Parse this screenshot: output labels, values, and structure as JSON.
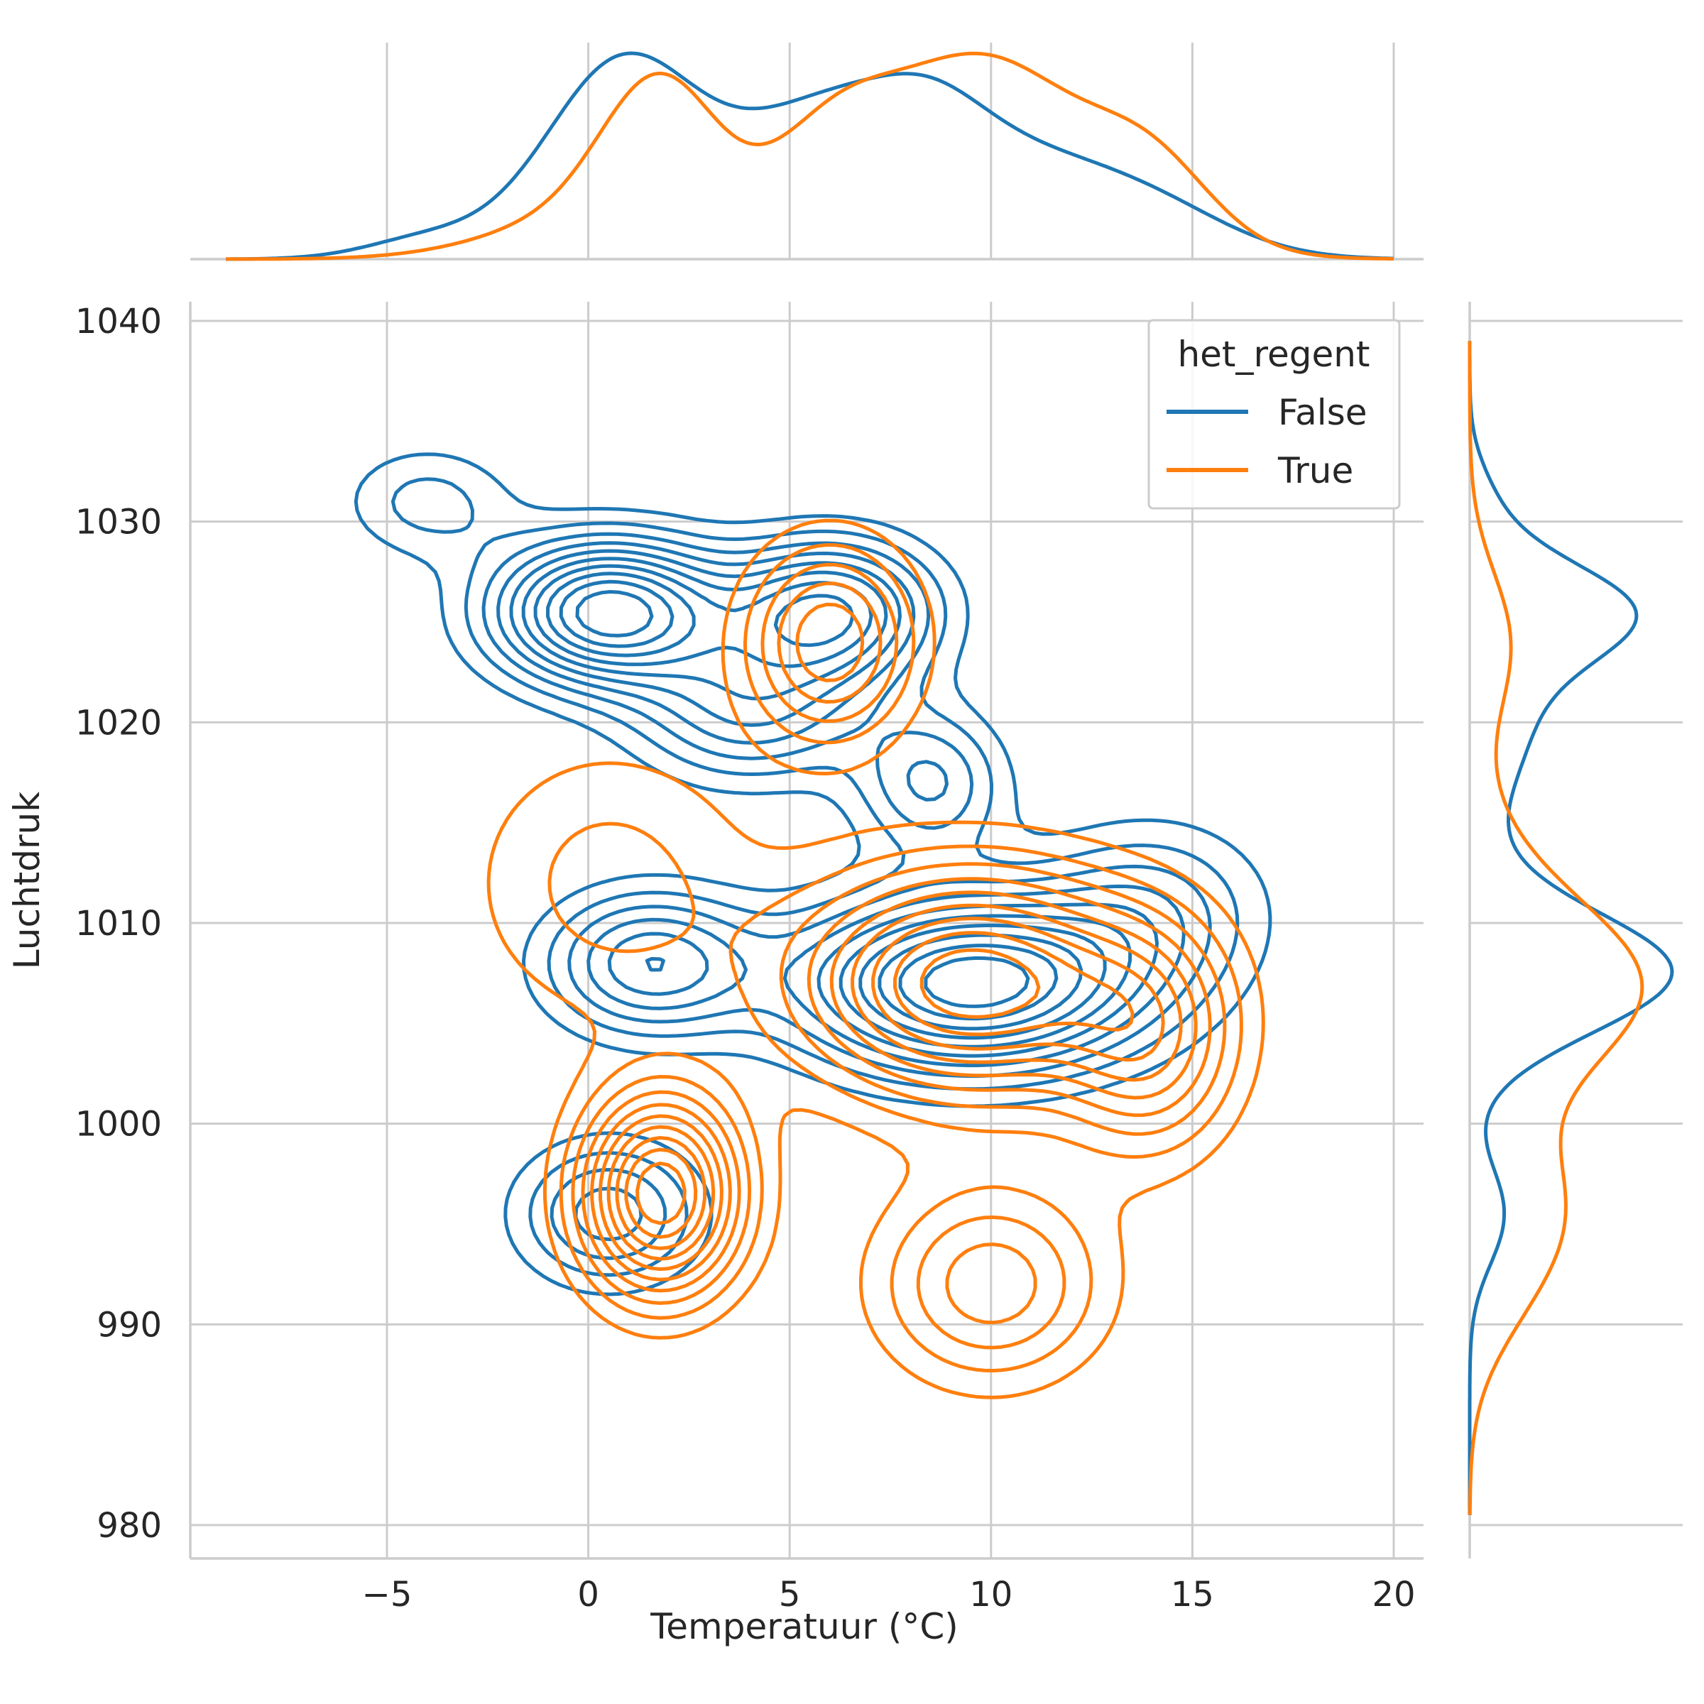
{
  "chart_data": {
    "type": "contour",
    "kind": "bivariate kde jointplot with marginal kde curves",
    "xlabel": "Temperatuur (°C)",
    "ylabel": "Luchtdruk",
    "xlim": [
      -10,
      21
    ],
    "ylim": [
      978.5,
      1041
    ],
    "xticks": [
      -5,
      0,
      5,
      10,
      15,
      20
    ],
    "xtick_labels": [
      "−5",
      "0",
      "5",
      "10",
      "15",
      "20"
    ],
    "yticks": [
      980,
      990,
      1000,
      1010,
      1020,
      1030,
      1040
    ],
    "ytick_labels": [
      "980",
      "990",
      "1000",
      "1010",
      "1020",
      "1030",
      "1040"
    ],
    "grid": true,
    "legend": {
      "title": "het_regent",
      "placement": "upper right",
      "entries": [
        "False",
        "True"
      ]
    },
    "series": [
      {
        "name": "False",
        "color": "#1f77b4",
        "modes": [
          {
            "x": 0.5,
            "y": 1025.5,
            "weight": 1.0,
            "sx": 2.0,
            "sy": 2.5
          },
          {
            "x": 6.0,
            "y": 1025.5,
            "weight": 0.75,
            "sx": 1.8,
            "sy": 2.5
          },
          {
            "x": 9.5,
            "y": 1007.0,
            "weight": 1.0,
            "sx": 3.0,
            "sy": 3.0
          },
          {
            "x": 1.5,
            "y": 1008.0,
            "weight": 0.55,
            "sx": 1.8,
            "sy": 2.5
          },
          {
            "x": 0.5,
            "y": 995.5,
            "weight": 0.45,
            "sx": 1.6,
            "sy": 2.5
          },
          {
            "x": 4.0,
            "y": 1020.5,
            "weight": 0.45,
            "sx": 2.0,
            "sy": 2.5
          },
          {
            "x": 8.5,
            "y": 1017.0,
            "weight": 0.4,
            "sx": 1.3,
            "sy": 2.5
          },
          {
            "x": -4.0,
            "y": 1031.0,
            "weight": 0.25,
            "sx": 1.5,
            "sy": 2.0
          },
          {
            "x": 14.0,
            "y": 1011.0,
            "weight": 0.3,
            "sx": 2.0,
            "sy": 3.0
          }
        ],
        "marginal_x_peaks": [
          1,
          7
        ],
        "marginal_y_peaks": [
          1007,
          1026
        ]
      },
      {
        "name": "True",
        "color": "#ff7f0e",
        "modes": [
          {
            "x": 1.8,
            "y": 996.5,
            "weight": 1.0,
            "sx": 1.4,
            "sy": 3.5
          },
          {
            "x": 9.5,
            "y": 1007.0,
            "weight": 0.9,
            "sx": 3.0,
            "sy": 4.0
          },
          {
            "x": 6.0,
            "y": 1024.0,
            "weight": 0.55,
            "sx": 1.5,
            "sy": 3.5
          },
          {
            "x": 10.0,
            "y": 992.0,
            "weight": 0.45,
            "sx": 2.0,
            "sy": 3.5
          },
          {
            "x": 14.0,
            "y": 1004.0,
            "weight": 0.45,
            "sx": 1.5,
            "sy": 4.0
          },
          {
            "x": 0.5,
            "y": 1012.0,
            "weight": 0.25,
            "sx": 2.5,
            "sy": 5.0
          }
        ],
        "marginal_x_peaks": [
          1.5,
          9.7
        ],
        "marginal_y_peaks": [
          1001,
          1008
        ]
      }
    ]
  }
}
